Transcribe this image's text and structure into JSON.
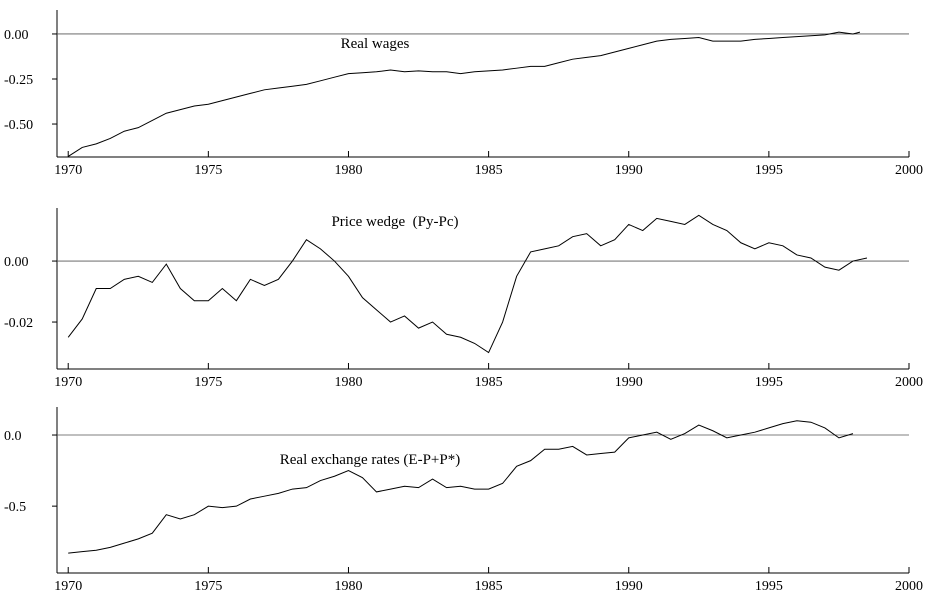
{
  "chart_data": [
    {
      "type": "line",
      "title": "Real wages",
      "x": [
        1970,
        1970.5,
        1971,
        1971.5,
        1972,
        1972.5,
        1973,
        1973.5,
        1974,
        1974.5,
        1975,
        1975.5,
        1976,
        1976.5,
        1977,
        1977.5,
        1978,
        1978.5,
        1979,
        1979.5,
        1980,
        1980.5,
        1981,
        1981.5,
        1982,
        1982.5,
        1983,
        1983.5,
        1984,
        1984.5,
        1985,
        1985.5,
        1986,
        1986.5,
        1987,
        1987.5,
        1988,
        1988.5,
        1989,
        1989.5,
        1990,
        1990.5,
        1991,
        1991.5,
        1992,
        1992.5,
        1993,
        1993.5,
        1994,
        1994.5,
        1995,
        1995.5,
        1996,
        1996.5,
        1997,
        1997.5,
        1998,
        1998.25
      ],
      "values": [
        -0.68,
        -0.63,
        -0.61,
        -0.58,
        -0.54,
        -0.52,
        -0.48,
        -0.44,
        -0.42,
        -0.4,
        -0.39,
        -0.37,
        -0.35,
        -0.33,
        -0.31,
        -0.3,
        -0.29,
        -0.28,
        -0.26,
        -0.24,
        -0.22,
        -0.215,
        -0.21,
        -0.2,
        -0.21,
        -0.205,
        -0.21,
        -0.21,
        -0.22,
        -0.21,
        -0.205,
        -0.2,
        -0.19,
        -0.18,
        -0.18,
        -0.16,
        -0.14,
        -0.13,
        -0.12,
        -0.1,
        -0.08,
        -0.06,
        -0.04,
        -0.03,
        -0.025,
        -0.02,
        -0.04,
        -0.04,
        -0.04,
        -0.03,
        -0.025,
        -0.02,
        -0.015,
        -0.01,
        -0.005,
        0.01,
        0.0,
        0.01
      ],
      "color": "#000000",
      "xlim": [
        1969.6,
        2000
      ],
      "xticks": [
        1970,
        1975,
        1980,
        1985,
        1990,
        1995,
        2000
      ],
      "ylim": [
        -0.683,
        0.133
      ],
      "yticks": [
        {
          "value": 0,
          "label": "0.00"
        },
        -0.25,
        {
          "value": -0.5,
          "label": "-0.50"
        }
      ],
      "hline": 0
    },
    {
      "type": "line",
      "title": "Price wedge  (Py-Pc)",
      "x": [
        1970,
        1970.5,
        1971,
        1971.5,
        1972,
        1972.5,
        1973,
        1973.5,
        1974,
        1974.5,
        1975,
        1975.5,
        1976,
        1976.5,
        1977,
        1977.5,
        1978,
        1978.5,
        1979,
        1979.5,
        1980,
        1980.5,
        1981,
        1981.5,
        1982,
        1982.5,
        1983,
        1983.5,
        1984,
        1984.5,
        1985,
        1985.5,
        1986,
        1986.5,
        1987,
        1987.5,
        1988,
        1988.5,
        1989,
        1989.5,
        1990,
        1990.5,
        1991,
        1991.5,
        1992,
        1992.5,
        1993,
        1993.5,
        1994,
        1994.5,
        1995,
        1995.5,
        1996,
        1996.5,
        1997,
        1997.5,
        1998,
        1998.5
      ],
      "values": [
        -0.025,
        -0.019,
        -0.009,
        -0.009,
        -0.006,
        -0.005,
        -0.007,
        -0.001,
        -0.009,
        -0.013,
        -0.013,
        -0.009,
        -0.013,
        -0.006,
        -0.008,
        -0.006,
        0.0,
        0.007,
        0.004,
        0.0,
        -0.005,
        -0.012,
        -0.016,
        -0.02,
        -0.018,
        -0.022,
        -0.02,
        -0.024,
        -0.025,
        -0.027,
        -0.03,
        -0.02,
        -0.005,
        0.003,
        0.004,
        0.005,
        0.008,
        0.009,
        0.005,
        0.007,
        0.012,
        0.01,
        0.014,
        0.013,
        0.012,
        0.015,
        0.012,
        0.01,
        0.006,
        0.004,
        0.006,
        0.005,
        0.002,
        0.001,
        -0.002,
        -0.003,
        0.0,
        0.001
      ],
      "color": "#000000",
      "xlim": [
        1969.6,
        2000
      ],
      "xticks": [
        1970,
        1975,
        1980,
        1985,
        1990,
        1995,
        2000
      ],
      "ylim": [
        -0.0354,
        0.0174
      ],
      "yticks": [
        {
          "value": 0,
          "label": "0.00"
        },
        -0.02
      ],
      "hline": 0
    },
    {
      "type": "line",
      "title": "Real exchange rates (E-P+P*)",
      "x": [
        1970,
        1970.5,
        1971,
        1971.5,
        1972,
        1972.5,
        1973,
        1973.5,
        1974,
        1974.5,
        1975,
        1975.5,
        1976,
        1976.5,
        1977,
        1977.5,
        1978,
        1978.5,
        1979,
        1979.5,
        1980,
        1980.5,
        1981,
        1981.5,
        1982,
        1982.5,
        1983,
        1983.5,
        1984,
        1984.5,
        1985,
        1985.5,
        1986,
        1986.5,
        1987,
        1987.5,
        1988,
        1988.5,
        1989,
        1989.5,
        1990,
        1990.5,
        1991,
        1991.5,
        1992,
        1992.5,
        1993,
        1993.5,
        1994,
        1994.5,
        1995,
        1995.5,
        1996,
        1996.5,
        1997,
        1997.5,
        1998
      ],
      "values": [
        -0.83,
        -0.82,
        -0.81,
        -0.79,
        -0.76,
        -0.73,
        -0.69,
        -0.56,
        -0.59,
        -0.56,
        -0.5,
        -0.51,
        -0.5,
        -0.45,
        -0.43,
        -0.41,
        -0.38,
        -0.37,
        -0.32,
        -0.29,
        -0.25,
        -0.3,
        -0.4,
        -0.38,
        -0.36,
        -0.37,
        -0.31,
        -0.37,
        -0.36,
        -0.38,
        -0.38,
        -0.34,
        -0.22,
        -0.18,
        -0.1,
        -0.1,
        -0.08,
        -0.14,
        -0.13,
        -0.12,
        -0.02,
        0.0,
        0.02,
        -0.03,
        0.01,
        0.07,
        0.03,
        -0.02,
        0.0,
        0.02,
        0.05,
        0.08,
        0.1,
        0.09,
        0.05,
        -0.02,
        0.01
      ],
      "color": "#000000",
      "xlim": [
        1969.6,
        2000
      ],
      "xticks": [
        1970,
        1975,
        1980,
        1985,
        1990,
        1995,
        2000
      ],
      "ylim": [
        -0.97,
        0.197
      ],
      "yticks": [
        {
          "value": 0,
          "label": "0.0"
        },
        -0.5
      ],
      "hline": 0
    }
  ]
}
